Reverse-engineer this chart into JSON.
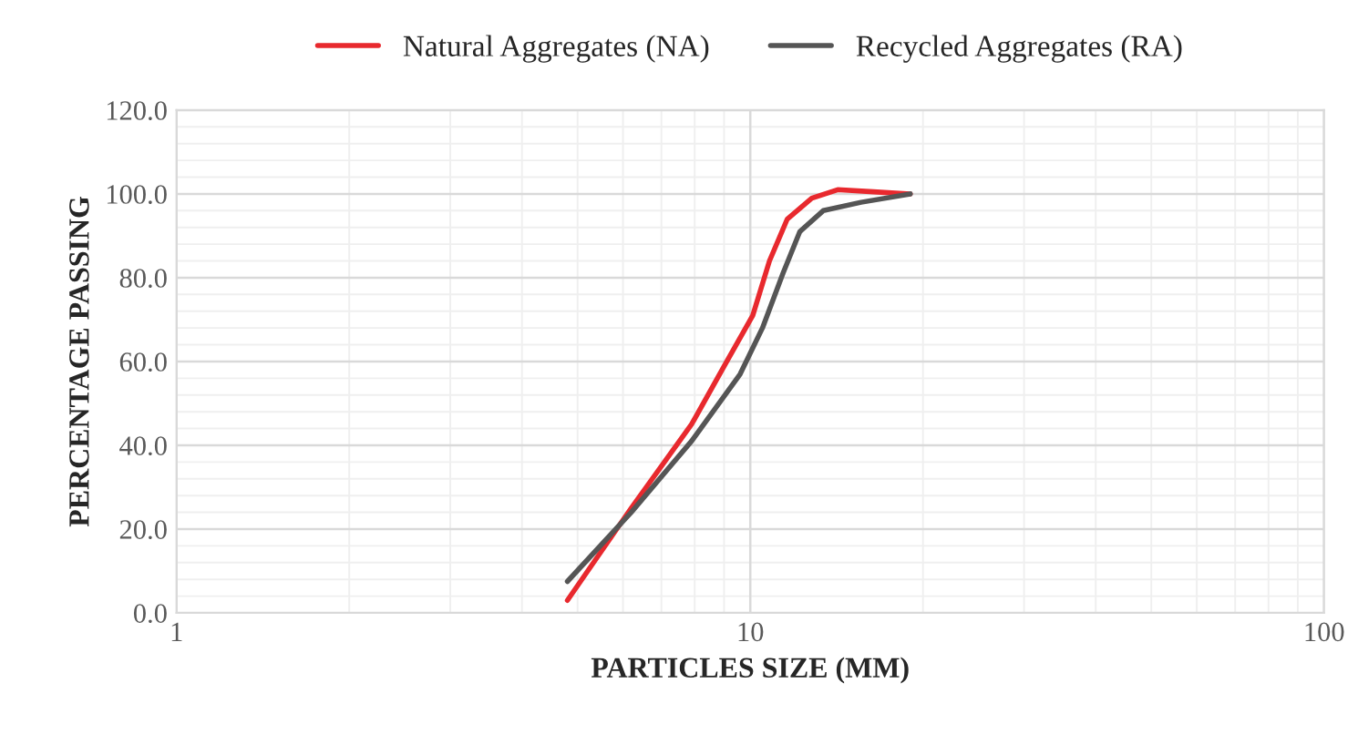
{
  "chart_data": {
    "type": "line",
    "xlabel": "PARTICLES SIZE (MM)",
    "ylabel": "PERCENTAGE PASSING",
    "log": "x",
    "grid": true,
    "legend": "top",
    "marker": "none",
    "line_style": "solid",
    "xlim": [
      1,
      100
    ],
    "xticks": [
      1,
      10,
      100
    ],
    "ylim": [
      0,
      120
    ],
    "yticks": [
      {
        "value": 0,
        "label": "0.0"
      },
      {
        "value": 20,
        "label": "20.0"
      },
      {
        "value": 40,
        "label": "40.0"
      },
      {
        "value": 60,
        "label": "60.0"
      },
      {
        "value": 80,
        "label": "80.0"
      },
      {
        "value": 100,
        "label": "100.0"
      },
      {
        "value": 120,
        "label": "120.0"
      }
    ],
    "series": [
      {
        "name": "Natural Aggregates (NA)",
        "color": "#e8292e",
        "x": [
          4.8,
          6.2,
          7.9,
          9.1,
          10.1,
          10.8,
          11.6,
          12.8,
          14.2,
          16.4,
          19
        ],
        "values": [
          3,
          25,
          45,
          60,
          71,
          84,
          94,
          99,
          101,
          100.5,
          100
        ]
      },
      {
        "name": "Recycled Aggregates (RA)",
        "color": "#555555",
        "x": [
          4.8,
          6.2,
          7.9,
          9.6,
          10.5,
          11.4,
          12.2,
          13.4,
          15.6,
          19
        ],
        "values": [
          7.5,
          24,
          41,
          57,
          68,
          81,
          91,
          96,
          98,
          100
        ]
      }
    ]
  }
}
